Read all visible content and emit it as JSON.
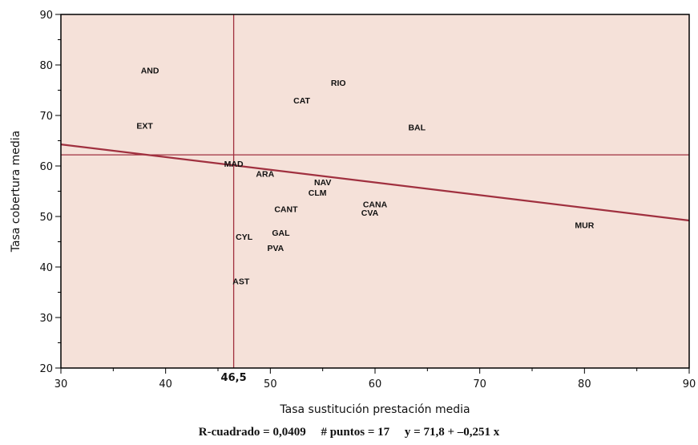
{
  "chart_data": {
    "type": "scatter",
    "title": "",
    "xlabel": "Tasa sustitución prestación media",
    "ylabel": "Tasa cobertura media",
    "xlim": [
      30,
      90
    ],
    "ylim": [
      20,
      90
    ],
    "x_ticks": [
      30,
      40,
      50,
      60,
      70,
      80,
      90
    ],
    "y_ticks": [
      20,
      30,
      40,
      50,
      60,
      70,
      80,
      90
    ],
    "grid": false,
    "background_color": "#f5e1d9",
    "line_color": "#a0303f",
    "points": [
      {
        "label": "AND",
        "x": 38.5,
        "y": 79
      },
      {
        "label": "RIO",
        "x": 56.5,
        "y": 76.5
      },
      {
        "label": "CAT",
        "x": 53,
        "y": 73
      },
      {
        "label": "EXT",
        "x": 38,
        "y": 68
      },
      {
        "label": "BAL",
        "x": 64,
        "y": 67.7
      },
      {
        "label": "MAD",
        "x": 46.5,
        "y": 60.5
      },
      {
        "label": "ARA",
        "x": 49.5,
        "y": 58.5
      },
      {
        "label": "NAV",
        "x": 55,
        "y": 56.8
      },
      {
        "label": "CLM",
        "x": 54.5,
        "y": 54.8
      },
      {
        "label": "CANA",
        "x": 60,
        "y": 52.5
      },
      {
        "label": "CVA",
        "x": 59.5,
        "y": 50.8
      },
      {
        "label": "CANT",
        "x": 51.5,
        "y": 51.5
      },
      {
        "label": "MUR",
        "x": 80,
        "y": 48.3
      },
      {
        "label": "GAL",
        "x": 51,
        "y": 46.8
      },
      {
        "label": "CYL",
        "x": 47.5,
        "y": 46
      },
      {
        "label": "PVA",
        "x": 50.5,
        "y": 43.8
      },
      {
        "label": "AST",
        "x": 47.2,
        "y": 37.2
      }
    ],
    "mean_x": 46.5,
    "mean_x_label": "46,5",
    "mean_y": 62.2,
    "regression": {
      "intercept": 71.8,
      "slope": -0.251
    },
    "stats": {
      "r_squared": "R-cuadrado = 0,0409",
      "n_points": "# puntos = 17",
      "equation": "y = 71,8 + –0,251 x"
    }
  }
}
